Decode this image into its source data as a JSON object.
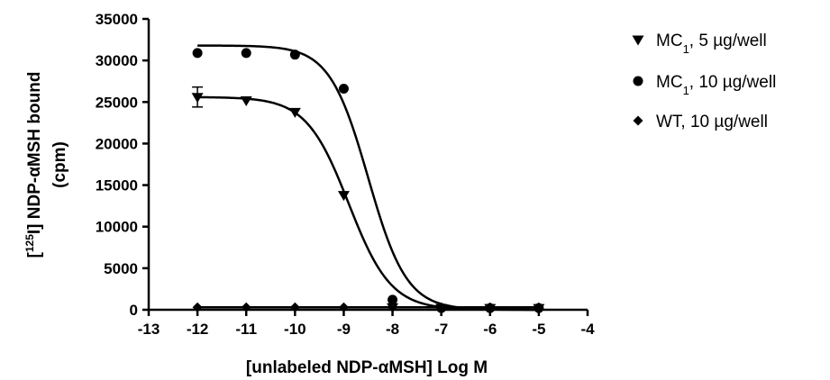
{
  "chart_data": {
    "type": "scatter",
    "x_axis": {
      "label": "[unlabeled NDP-αMSH] Log M",
      "range": [
        -13,
        -4
      ],
      "ticks": [
        -13,
        -12,
        -11,
        -10,
        -9,
        -8,
        -7,
        -6,
        -5,
        -4
      ]
    },
    "y_axis": {
      "label_line1_parts": [
        "[",
        "125",
        "I] NDP-αMSH bound"
      ],
      "label_line2": "(cpm)",
      "range": [
        0,
        35000
      ],
      "ticks": [
        0,
        5000,
        10000,
        15000,
        20000,
        25000,
        30000,
        35000
      ]
    },
    "grid": false,
    "legend_position": "right",
    "series": [
      {
        "name_parts": [
          "MC",
          "1",
          ", 5 µg/well"
        ],
        "marker": "triangle-down",
        "x": [
          -12,
          -11,
          -10,
          -9,
          -8,
          -7,
          -6,
          -5
        ],
        "y": [
          25600,
          25200,
          23800,
          13800,
          300,
          200,
          200,
          200
        ],
        "error": [
          1200,
          0,
          0,
          0,
          0,
          0,
          0,
          0
        ],
        "fit": {
          "top": 25600,
          "bottom": 0,
          "log_ec50": -8.9,
          "hill": -1
        }
      },
      {
        "name_parts": [
          "MC",
          "1",
          ", 10 µg/well"
        ],
        "marker": "circle",
        "x": [
          -12,
          -11,
          -10,
          -9,
          -8,
          -7,
          -6,
          -5
        ],
        "y": [
          30900,
          30900,
          30700,
          26600,
          1200,
          200,
          200,
          200
        ],
        "error": [
          0,
          0,
          0,
          0,
          0,
          0,
          0,
          0
        ],
        "fit": {
          "top": 31800,
          "bottom": 0,
          "log_ec50": -8.5,
          "hill": -1.1
        }
      },
      {
        "name_parts": [
          "WT, 10 µg/well"
        ],
        "marker": "diamond",
        "x": [
          -12,
          -11,
          -10,
          -9,
          -8,
          -7,
          -6,
          -5
        ],
        "y": [
          300,
          300,
          300,
          300,
          300,
          300,
          300,
          300
        ],
        "error": [
          0,
          0,
          0,
          0,
          0,
          0,
          0,
          0
        ],
        "fit": {
          "top": 300,
          "bottom": 300,
          "log_ec50": -9,
          "hill": -1
        }
      }
    ]
  }
}
